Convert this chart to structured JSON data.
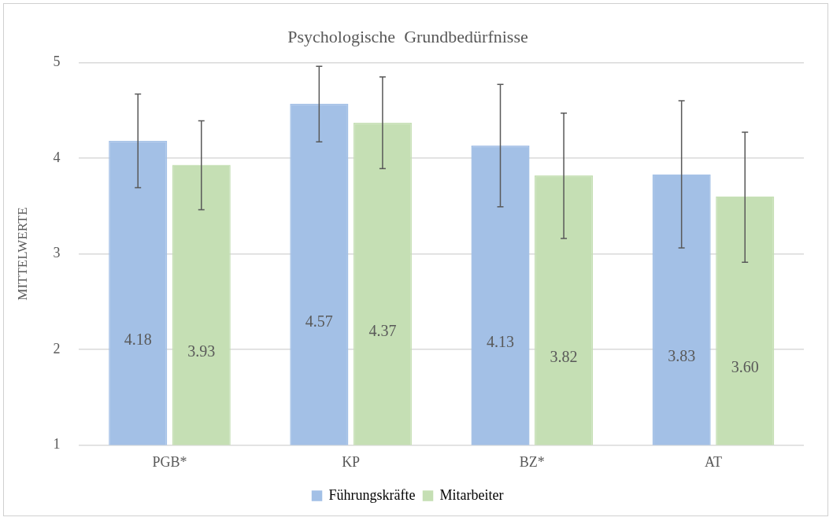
{
  "chart_data": {
    "type": "bar",
    "title": "Psychologische  Grundbedürfnisse",
    "ylabel": "MITTELWERTE",
    "categories": [
      "PGB*",
      "KP",
      "BZ*",
      "AT"
    ],
    "series": [
      {
        "name": "Führungskräfte",
        "color": "#a3c0e6",
        "values": [
          4.18,
          4.57,
          4.13,
          3.83
        ],
        "value_labels": [
          "4.18",
          "4.57",
          "4.13",
          "3.83"
        ],
        "errors": [
          [
            3.69,
            4.67
          ],
          [
            4.17,
            4.96
          ],
          [
            3.49,
            4.77
          ],
          [
            3.06,
            4.6
          ]
        ]
      },
      {
        "name": "Mitarbeiter",
        "color": "#c5dfb4",
        "values": [
          3.93,
          4.37,
          3.82,
          3.6
        ],
        "value_labels": [
          "3.93",
          "4.37",
          "3.82",
          "3.60"
        ],
        "errors": [
          [
            3.46,
            4.39
          ],
          [
            3.89,
            4.85
          ],
          [
            3.16,
            4.47
          ],
          [
            2.91,
            4.27
          ]
        ]
      }
    ],
    "ylim": [
      1,
      5
    ],
    "yticks": [
      1,
      2,
      3,
      4,
      5
    ],
    "grid": "y",
    "legend": "bottom"
  }
}
